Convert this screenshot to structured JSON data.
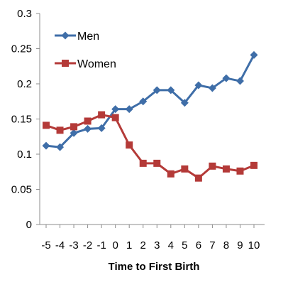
{
  "chart_data": {
    "type": "line",
    "title": "",
    "xlabel": "Time to First Birth",
    "ylabel": "",
    "x": [
      -5,
      -4,
      -3,
      -2,
      -1,
      0,
      1,
      2,
      3,
      4,
      5,
      6,
      7,
      8,
      9,
      10
    ],
    "x_tick_labels": [
      "-5",
      "-4",
      "-3",
      "-2",
      "-1",
      "0",
      "1",
      "2",
      "3",
      "4",
      "5",
      "6",
      "7",
      "8",
      "9",
      "10"
    ],
    "y_tick_labels": [
      "0",
      "0.05",
      "0.1",
      "0.15",
      "0.2",
      "0.25",
      "0.3"
    ],
    "y_ticks": [
      0,
      0.05,
      0.1,
      0.15,
      0.2,
      0.25,
      0.3
    ],
    "ylim": [
      0,
      0.3
    ],
    "grid": false,
    "legend_position": "top-left",
    "series": [
      {
        "name": "Men",
        "color": "#3f6ea8",
        "marker": "diamond",
        "values": [
          0.112,
          0.11,
          0.13,
          0.136,
          0.137,
          0.164,
          0.164,
          0.175,
          0.191,
          0.191,
          0.173,
          0.198,
          0.194,
          0.208,
          0.204,
          0.241
        ]
      },
      {
        "name": "Women",
        "color": "#b43a38",
        "marker": "square",
        "values": [
          0.141,
          0.134,
          0.139,
          0.147,
          0.156,
          0.152,
          0.113,
          0.087,
          0.087,
          0.072,
          0.079,
          0.066,
          0.083,
          0.079,
          0.076,
          0.084
        ]
      }
    ]
  }
}
